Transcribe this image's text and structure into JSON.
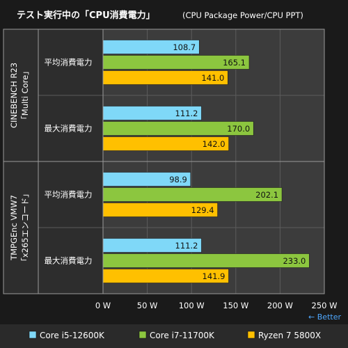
{
  "chart_data": {
    "type": "bar",
    "orientation": "horizontal",
    "title": "テスト実行中の「CPU消費電力」",
    "subtitle": "(CPU Package Power/CPU PPT)",
    "xlabel": "",
    "ylabel": "",
    "xlim": [
      0,
      250
    ],
    "x_ticks": [
      "0 W",
      "50 W",
      "100 W",
      "150 W",
      "200 W",
      "250 W"
    ],
    "better_label": "← Better",
    "grid": true,
    "legend_position": "bottom",
    "groups": [
      {
        "label": "CINEBENCH R23\n「Multi Core」",
        "categories": [
          {
            "label": "平均消費電力",
            "values": [
              108.7,
              165.1,
              141.0
            ]
          },
          {
            "label": "最大消費電力",
            "values": [
              111.2,
              170.0,
              142.0
            ]
          }
        ]
      },
      {
        "label": "TMPGEnc VMW7\n「x265エンコード」",
        "categories": [
          {
            "label": "平均消費電力",
            "values": [
              98.9,
              202.1,
              129.4
            ]
          },
          {
            "label": "最大消費電力",
            "values": [
              111.2,
              233.0,
              141.9
            ]
          }
        ]
      }
    ],
    "series": [
      {
        "name": "Core i5-12600K",
        "color": "#7fd8f8"
      },
      {
        "name": "Core i7-11700K",
        "color": "#8cc63f"
      },
      {
        "name": "Ryzen 7 5800X",
        "color": "#ffc000"
      }
    ]
  }
}
